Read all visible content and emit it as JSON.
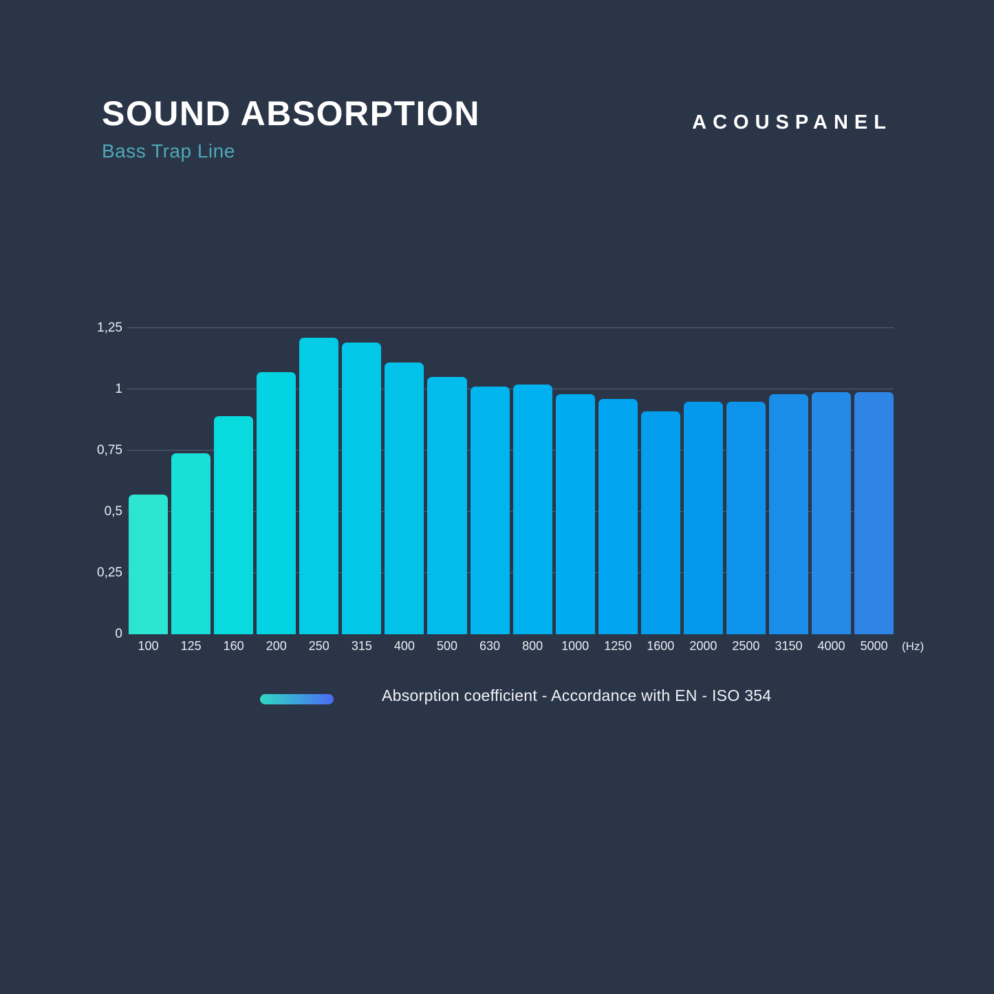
{
  "page": {
    "background": "#2b3548"
  },
  "header": {
    "title": "SOUND ABSORPTION",
    "subtitle": "Bass Trap Line",
    "subtitle_color": "#4fa8b8",
    "brand": "ACOUSPANEL"
  },
  "chart_data": {
    "type": "bar",
    "title": "SOUND ABSORPTION - Bass Trap Line",
    "categories": [
      "100",
      "125",
      "160",
      "200",
      "250",
      "315",
      "400",
      "500",
      "630",
      "800",
      "1000",
      "1250",
      "1600",
      "2000",
      "2500",
      "3150",
      "4000",
      "5000"
    ],
    "values": [
      0.57,
      0.74,
      0.89,
      1.07,
      1.21,
      1.19,
      1.11,
      1.05,
      1.01,
      1.02,
      0.98,
      0.96,
      0.91,
      0.95,
      0.95,
      0.98,
      0.99,
      0.99
    ],
    "bar_colors": [
      "#2ce5d0",
      "#18e0d8",
      "#08dbde",
      "#04d3e3",
      "#03cde6",
      "#03c8e8",
      "#02c2ea",
      "#01bcec",
      "#01b6ee",
      "#00b1f0",
      "#01abf0",
      "#02a5ef",
      "#039fee",
      "#0599ec",
      "#0e93ea",
      "#1a8de8",
      "#248ae7",
      "#2e85e6"
    ],
    "xlabel": "(Hz)",
    "ylabel": "",
    "ylim": [
      0,
      1.25
    ],
    "y_ticks": [
      {
        "value": 0,
        "label": "0"
      },
      {
        "value": 0.25,
        "label": "0,25"
      },
      {
        "value": 0.5,
        "label": "0,5"
      },
      {
        "value": 0.75,
        "label": "0,75"
      },
      {
        "value": 1,
        "label": "1"
      },
      {
        "value": 1.25,
        "label": "1,25"
      }
    ],
    "grid": true,
    "gridline_color": "rgba(188,204,224,0.28)",
    "legend": {
      "position": "bottom",
      "label": "Absorption coefficient - Accordance with EN - ISO 354",
      "swatch_gradient": [
        "#2ed9c3",
        "#4b6cf5"
      ]
    }
  }
}
